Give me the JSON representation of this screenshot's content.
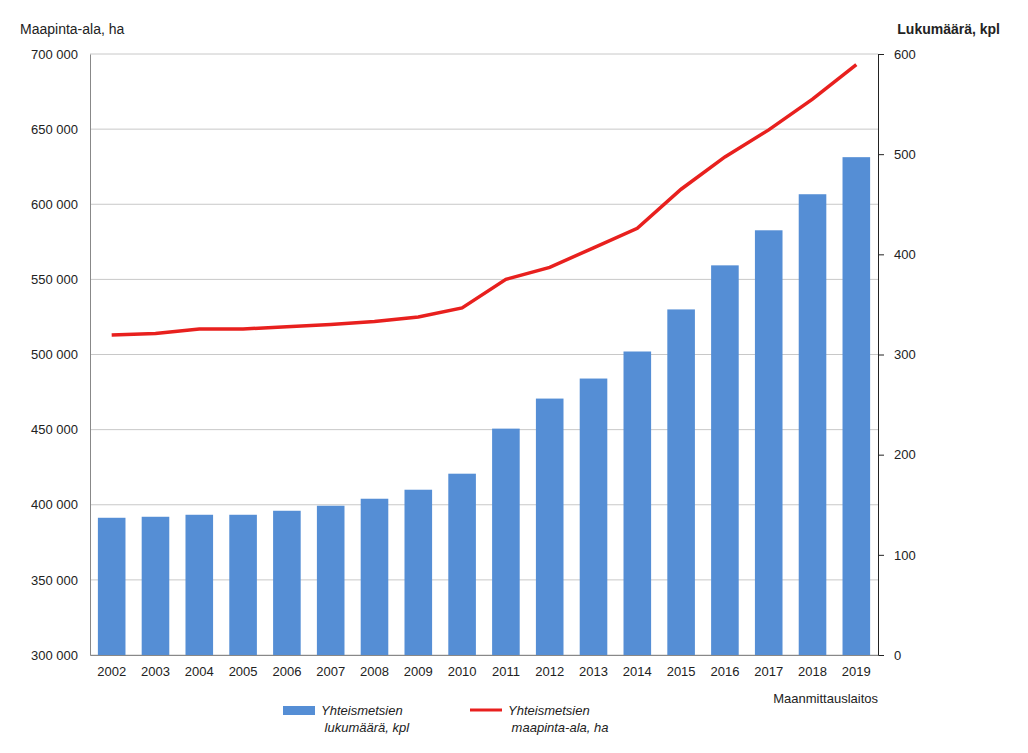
{
  "chart_data": {
    "type": "bar",
    "y_label": "Maapinta-ala, ha",
    "y2_label": "Lukumäärä, kpl",
    "source": "Maanmittauslaitos",
    "categories": [
      "2002",
      "2003",
      "2004",
      "2005",
      "2006",
      "2007",
      "2008",
      "2009",
      "2010",
      "2011",
      "2012",
      "2013",
      "2014",
      "2015",
      "2016",
      "2017",
      "2018",
      "2019"
    ],
    "series": [
      {
        "name": "Yhteismetsien lukumäärä, kpl",
        "type": "bar",
        "axis": "y2",
        "color": "#558ed5",
        "values": [
          137,
          138,
          140,
          140,
          144,
          149,
          156,
          165,
          181,
          226,
          256,
          276,
          303,
          345,
          389,
          424,
          460,
          497
        ]
      },
      {
        "name": "Yhteismetsien maapinta-ala, ha",
        "type": "line",
        "color": "#e8201e",
        "values": [
          513000,
          514000,
          517000,
          517000,
          518500,
          520000,
          522000,
          525000,
          531000,
          550000,
          558000,
          571000,
          584000,
          610000,
          631500,
          649500,
          670000,
          693000
        ]
      }
    ],
    "ylim": [
      300000,
      700000
    ],
    "yticks": [
      {
        "value": 300000,
        "label": "300 000"
      },
      {
        "value": 350000,
        "label": "350 000"
      },
      {
        "value": 400000,
        "label": "400 000"
      },
      {
        "value": 450000,
        "label": "450 000"
      },
      {
        "value": 500000,
        "label": "500 000"
      },
      {
        "value": 550000,
        "label": "550 000"
      },
      {
        "value": 600000,
        "label": "600 000"
      },
      {
        "value": 650000,
        "label": "650 000"
      },
      {
        "value": 700000,
        "label": "700 000"
      }
    ],
    "y2lim": [
      0,
      600
    ],
    "y2ticks": [
      0,
      100,
      200,
      300,
      400,
      500,
      600
    ],
    "grid": true,
    "legend": "bottom"
  }
}
